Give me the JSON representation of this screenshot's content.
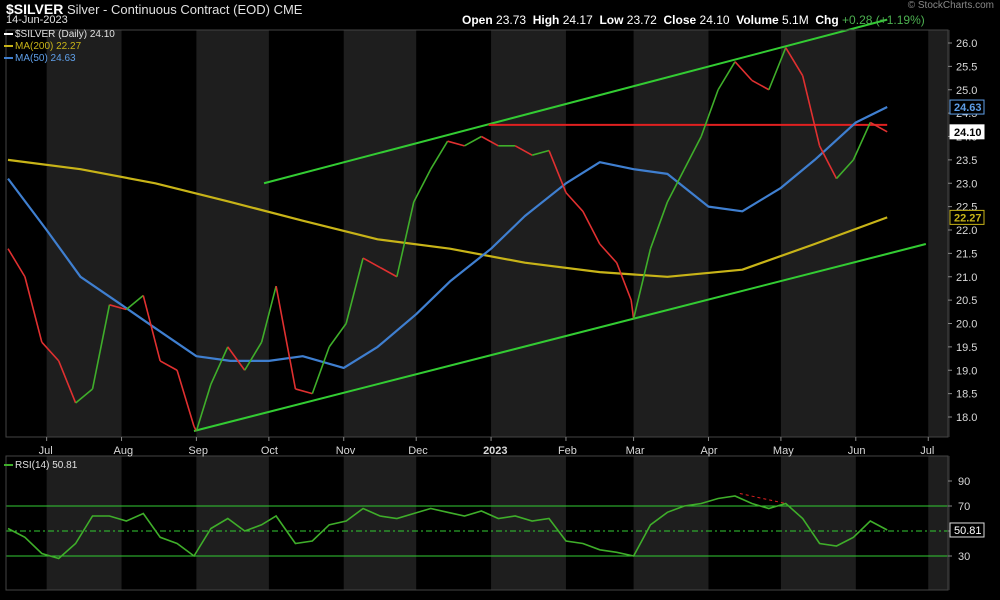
{
  "header": {
    "symbol": "$SILVER",
    "description": "Silver - Continuous Contract (EOD)",
    "exchange": "CME",
    "date": "14-Jun-2023",
    "open_label": "Open",
    "open": "23.73",
    "high_label": "High",
    "high": "24.17",
    "low_label": "Low",
    "low": "23.72",
    "close_label": "Close",
    "close": "24.10",
    "volume_label": "Volume",
    "volume": "5.1M",
    "chg_label": "Chg",
    "chg": "+0.28 (+1.19%)",
    "watermark": "© StockCharts.com"
  },
  "legend": {
    "price": "$SILVER (Daily) 24.10",
    "ma200": "MA(200) 22.27",
    "ma50": "MA(50) 24.63",
    "rsi": "RSI(14) 50.81"
  },
  "colors": {
    "up": "#3fae2a",
    "down": "#e03030",
    "ma50": "#3f7fd0",
    "ma200": "#c8b418",
    "channel": "#33cc33",
    "resistance": "#e02020",
    "rsi": "#3fae2a",
    "grid": "#3a3a3a",
    "band": "#1e1e1e"
  },
  "chart_data": [
    {
      "type": "line",
      "title": "$SILVER Silver - Continuous Contract (EOD)",
      "ylim": [
        17.5,
        26.3
      ],
      "y_ticks": [
        18.0,
        18.5,
        19.0,
        19.5,
        20.0,
        20.5,
        21.0,
        21.5,
        22.0,
        22.5,
        23.0,
        23.5,
        24.0,
        24.5,
        25.0,
        25.5,
        26.0
      ],
      "x_ticks": [
        "Jul",
        "Aug",
        "Sep",
        "Oct",
        "Nov",
        "Dec",
        "2023",
        "Feb",
        "Mar",
        "Apr",
        "May",
        "Jun",
        "Jul"
      ],
      "price_labels": {
        "ma50": "24.63",
        "close": "24.10",
        "ma200": "22.27"
      },
      "series": [
        {
          "name": "$SILVER (Daily)",
          "style": "close",
          "x": [
            "2022-06-15",
            "2022-06-22",
            "2022-06-29",
            "2022-07-06",
            "2022-07-13",
            "2022-07-20",
            "2022-07-27",
            "2022-08-03",
            "2022-08-10",
            "2022-08-17",
            "2022-08-24",
            "2022-08-31",
            "2022-09-01",
            "2022-09-07",
            "2022-09-14",
            "2022-09-21",
            "2022-09-28",
            "2022-10-04",
            "2022-10-12",
            "2022-10-19",
            "2022-10-26",
            "2022-11-02",
            "2022-11-09",
            "2022-11-16",
            "2022-11-23",
            "2022-11-30",
            "2022-12-07",
            "2022-12-14",
            "2022-12-21",
            "2022-12-28",
            "2023-01-04",
            "2023-01-11",
            "2023-01-18",
            "2023-01-25",
            "2023-02-01",
            "2023-02-08",
            "2023-02-15",
            "2023-02-22",
            "2023-02-28",
            "2023-03-01",
            "2023-03-08",
            "2023-03-15",
            "2023-03-22",
            "2023-03-29",
            "2023-04-05",
            "2023-04-12",
            "2023-04-19",
            "2023-04-26",
            "2023-05-03",
            "2023-05-10",
            "2023-05-17",
            "2023-05-24",
            "2023-05-31",
            "2023-06-07",
            "2023-06-14"
          ],
          "values": [
            21.6,
            21.0,
            19.6,
            19.2,
            18.3,
            18.6,
            20.4,
            20.3,
            20.6,
            19.2,
            19.0,
            17.8,
            17.7,
            18.7,
            19.5,
            19.0,
            19.6,
            20.8,
            18.6,
            18.5,
            19.5,
            20.0,
            21.4,
            21.2,
            21.0,
            22.6,
            23.3,
            23.9,
            23.8,
            24.0,
            23.8,
            23.8,
            23.6,
            23.7,
            22.8,
            22.4,
            21.7,
            21.3,
            20.5,
            20.1,
            21.6,
            22.6,
            23.3,
            24.0,
            25.0,
            25.6,
            25.2,
            25.0,
            25.9,
            25.3,
            23.8,
            23.1,
            23.5,
            24.3,
            24.1
          ]
        },
        {
          "name": "MA(50)",
          "x": [
            "2022-06-15",
            "2022-07-01",
            "2022-07-15",
            "2022-08-01",
            "2022-08-15",
            "2022-09-01",
            "2022-09-15",
            "2022-10-01",
            "2022-10-15",
            "2022-11-01",
            "2022-11-15",
            "2022-12-01",
            "2022-12-15",
            "2023-01-01",
            "2023-01-15",
            "2023-02-01",
            "2023-02-15",
            "2023-03-01",
            "2023-03-15",
            "2023-04-01",
            "2023-04-15",
            "2023-05-01",
            "2023-05-15",
            "2023-06-01",
            "2023-06-14"
          ],
          "values": [
            23.1,
            22.0,
            21.0,
            20.4,
            19.9,
            19.3,
            19.2,
            19.2,
            19.3,
            19.05,
            19.5,
            20.2,
            20.9,
            21.6,
            22.3,
            23.0,
            23.45,
            23.3,
            23.2,
            22.5,
            22.4,
            22.9,
            23.5,
            24.3,
            24.63
          ]
        },
        {
          "name": "MA(200)",
          "x": [
            "2022-06-15",
            "2022-07-15",
            "2022-08-15",
            "2022-09-15",
            "2022-10-15",
            "2022-11-15",
            "2022-12-15",
            "2023-01-15",
            "2023-02-15",
            "2023-03-15",
            "2023-04-15",
            "2023-05-15",
            "2023-06-14"
          ],
          "values": [
            23.5,
            23.3,
            23.0,
            22.6,
            22.2,
            21.8,
            21.6,
            21.3,
            21.1,
            21.0,
            21.15,
            21.7,
            22.27
          ]
        }
      ],
      "annotations": [
        {
          "name": "upper-channel",
          "x": [
            "2022-09-29",
            "2023-06-14"
          ],
          "y": [
            23.0,
            26.5
          ]
        },
        {
          "name": "lower-channel",
          "x": [
            "2022-08-31",
            "2023-06-30"
          ],
          "y": [
            17.7,
            21.7
          ]
        },
        {
          "name": "resistance",
          "x": [
            "2022-12-31",
            "2023-06-14"
          ],
          "y": [
            24.25,
            24.25
          ]
        }
      ]
    },
    {
      "type": "line",
      "title": "RSI(14) 50.81",
      "ylim": [
        20,
        90
      ],
      "y_ticks": [
        30,
        50,
        70,
        90
      ],
      "reference_lines": [
        70,
        50,
        30
      ],
      "value_label": "50.81",
      "series": [
        {
          "name": "RSI(14)",
          "x": [
            "2022-06-15",
            "2022-06-22",
            "2022-06-29",
            "2022-07-06",
            "2022-07-13",
            "2022-07-20",
            "2022-07-27",
            "2022-08-03",
            "2022-08-10",
            "2022-08-17",
            "2022-08-24",
            "2022-08-31",
            "2022-09-07",
            "2022-09-14",
            "2022-09-21",
            "2022-09-28",
            "2022-10-04",
            "2022-10-12",
            "2022-10-19",
            "2022-10-26",
            "2022-11-02",
            "2022-11-09",
            "2022-11-16",
            "2022-11-23",
            "2022-11-30",
            "2022-12-07",
            "2022-12-14",
            "2022-12-21",
            "2022-12-28",
            "2023-01-04",
            "2023-01-11",
            "2023-01-18",
            "2023-01-25",
            "2023-02-01",
            "2023-02-08",
            "2023-02-15",
            "2023-02-22",
            "2023-03-01",
            "2023-03-08",
            "2023-03-15",
            "2023-03-22",
            "2023-03-29",
            "2023-04-05",
            "2023-04-12",
            "2023-04-19",
            "2023-04-26",
            "2023-05-03",
            "2023-05-10",
            "2023-05-17",
            "2023-05-24",
            "2023-05-31",
            "2023-06-07",
            "2023-06-14"
          ],
          "values": [
            52,
            45,
            32,
            28,
            40,
            62,
            62,
            58,
            64,
            45,
            40,
            30,
            52,
            60,
            50,
            55,
            62,
            40,
            42,
            55,
            58,
            68,
            62,
            60,
            64,
            68,
            65,
            62,
            66,
            60,
            62,
            58,
            60,
            42,
            40,
            35,
            33,
            30,
            55,
            65,
            70,
            72,
            76,
            78,
            72,
            68,
            72,
            60,
            40,
            38,
            45,
            58,
            50.81
          ]
        }
      ],
      "annotations": [
        {
          "name": "rsi-divergence",
          "x": [
            "2023-04-14",
            "2023-05-03"
          ],
          "y": [
            80,
            72
          ]
        }
      ]
    }
  ]
}
